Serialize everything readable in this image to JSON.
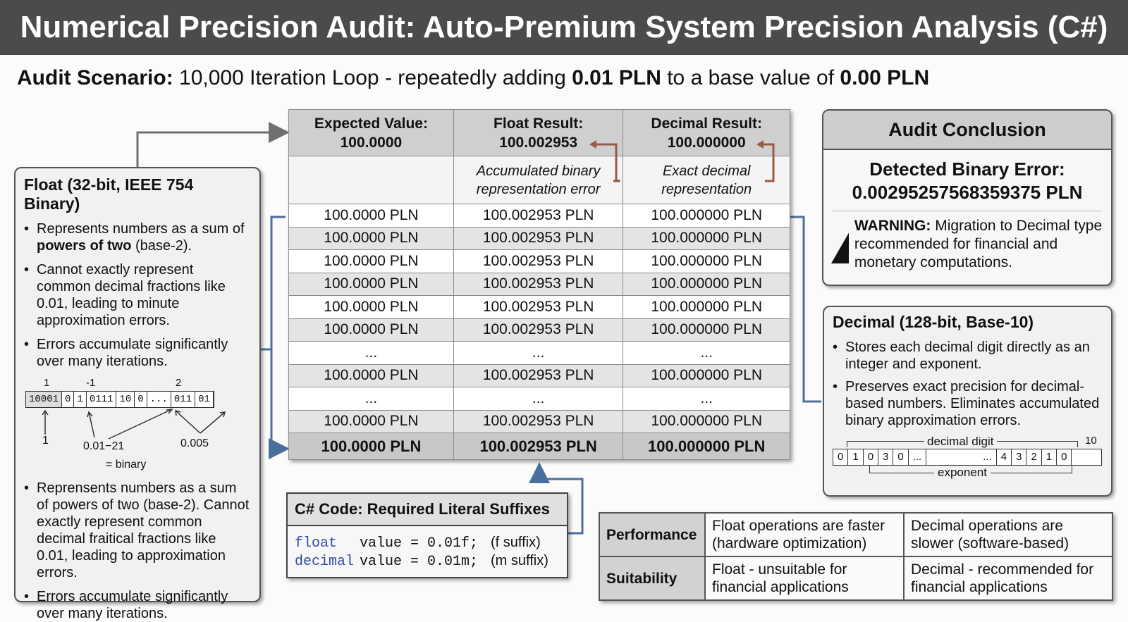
{
  "header": {
    "title": "Numerical Precision Audit: Auto-Premium System Precision Analysis (C#)"
  },
  "scenario": {
    "label": "Audit Scenario:",
    "text_1": "10,000 Iteration Loop - repeatedly adding",
    "amount": "0.01 PLN",
    "text_2": "to a base value of",
    "base": "0.00 PLN"
  },
  "float_panel": {
    "title": "Float (32-bit, IEEE 754 Binary)",
    "bullets": [
      {
        "text": "Represents numbers as a sum of",
        "bold": "powers of two",
        "after": "(base-2)."
      },
      {
        "text": "Cannot exactly represent common decimal fractions like 0.01, leading to minute approximation errors."
      },
      {
        "text": "Errors accumulate significantly over many iterations."
      }
    ],
    "diagram": {
      "top_labels": [
        "1",
        "-1",
        "2"
      ],
      "bits": [
        "10001",
        "0",
        "1",
        "0111",
        "10",
        "0",
        "...",
        "011",
        "01"
      ],
      "bottom_labels": [
        "1",
        "0.01−21",
        "0.005",
        "= binary"
      ]
    },
    "bullets_2": [
      "Reprensents numbers as a sum of powers of two (base-2). Cannot exactly represent common decimal fraitical fractions like 0.01, leading to approximation errors.",
      "Errors accumulate significantly over many iterations."
    ]
  },
  "table": {
    "columns": [
      {
        "label": "Expected Value:",
        "value": "100.0000"
      },
      {
        "label": "Float Result:",
        "value": "100.002953",
        "note": "Accumulated binary representation error"
      },
      {
        "label": "Decimal Result:",
        "value": "100.000000",
        "note": "Exact decimal representation"
      }
    ],
    "rows": [
      [
        "100.0000 PLN",
        "100.002953 PLN",
        "100.000000 PLN"
      ],
      [
        "100.0000 PLN",
        "100.002953 PLN",
        "100.000000 PLN"
      ],
      [
        "100.0000 PLN",
        "100.002953 PLN",
        "100.000000 PLN"
      ],
      [
        "100.0000 PLN",
        "100.002953 PLN",
        "100.000000 PLN"
      ],
      [
        "100.0000 PLN",
        "100.002953 PLN",
        "100.000000 PLN"
      ],
      [
        "100.0000 PLN",
        "100.002953 PLN",
        "100.000000 PLN"
      ],
      [
        "...",
        "...",
        "..."
      ],
      [
        "100.0000 PLN",
        "100.002953 PLN",
        "100.000000 PLN"
      ],
      [
        "...",
        "...",
        "..."
      ],
      [
        "100.0000 PLN",
        "100.002953 PLN",
        "100.000000 PLN"
      ]
    ],
    "final_row": [
      "100.0000 PLN",
      "100.002953 PLN",
      "100.000000 PLN"
    ]
  },
  "code": {
    "title": "C# Code: Required Literal Suffixes",
    "lines": [
      {
        "keyword": "float",
        "code": "value = 0.01f;",
        "comment": "(f suffix)"
      },
      {
        "keyword": "decimal",
        "code": "value = 0.01m;",
        "comment": "(m suffix)"
      }
    ]
  },
  "conclusion": {
    "title": "Audit Conclusion",
    "error_label": "Detected Binary Error:",
    "error_value": "0.00295257568359375 PLN",
    "warning_label": "WARNING:",
    "warning_text": "Migration to Decimal type recommended for financial and monetary computations."
  },
  "decimal_panel": {
    "title": "Decimal (128-bit, Base-10)",
    "bullets": [
      "Stores each decimal digit directly as an integer and exponent.",
      "Preserves exact precision for decimal-based numbers. Eliminates accumulated binary approximation errors."
    ],
    "diagram": {
      "digit_label": "decimal digit",
      "top_right": "10",
      "digits": [
        "0",
        "1",
        "0",
        "3",
        "0",
        "...",
        "...",
        "4",
        "3",
        "2",
        "1",
        "0"
      ],
      "exponent_label": "exponent"
    }
  },
  "comparison": {
    "rows": [
      {
        "label": "Performance",
        "float": "Float operations are faster (hardware optimization)",
        "decimal": "Decimal operations are slower (software-based)"
      },
      {
        "label": "Suitability",
        "float": "Float - unsuitable for financial applications",
        "decimal": "Decimal - recommended for financial applications"
      }
    ]
  }
}
